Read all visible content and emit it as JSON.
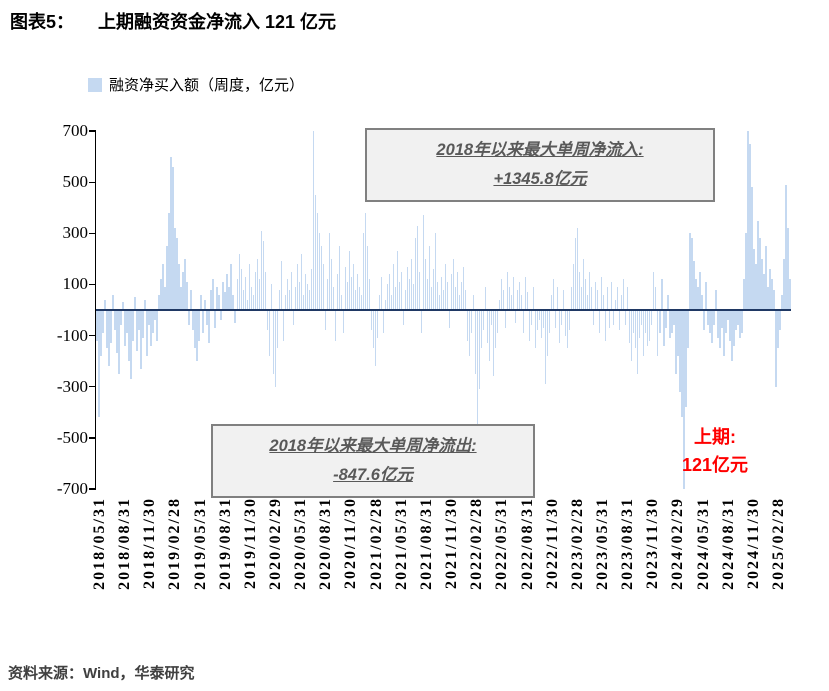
{
  "page": {
    "title_label": "图表5：",
    "title_text": "上期融资资金净流入 121 亿元",
    "source_note": "资料来源：Wind，华泰研究"
  },
  "legend": {
    "label": "融资净买入额（周度，亿元）",
    "swatch_color": "#C5D9F1"
  },
  "annotations": {
    "max_inflow_line1": "2018年以来最大单周净流入:",
    "max_inflow_line2": "+1345.8亿元",
    "max_outflow_line1": "2018年以来最大单周净流出:",
    "max_outflow_line2": "-847.6亿元",
    "last_period_label": "上期:",
    "last_period_value": "121亿元",
    "last_period_color": "#FF0000"
  },
  "chart_data": {
    "type": "bar",
    "title": "融资净买入额（周度，亿元）",
    "xlabel": "",
    "ylabel": "",
    "ylim": [
      -700,
      700
    ],
    "clip": 700,
    "grid": false,
    "bar_color": "#C5D9F1",
    "zero_line_color": "#1F3864",
    "y_ticks": [
      700,
      500,
      300,
      100,
      -100,
      -300,
      -500,
      -700
    ],
    "x_tick_labels": [
      "2018/05/31",
      "2018/08/31",
      "2018/11/30",
      "2019/02/28",
      "2019/05/31",
      "2019/08/31",
      "2019/11/30",
      "2020/02/29",
      "2020/05/31",
      "2020/08/31",
      "2020/11/30",
      "2021/02/28",
      "2021/05/31",
      "2021/08/31",
      "2021/11/30",
      "2022/02/28",
      "2022/05/31",
      "2022/08/31",
      "2022/11/30",
      "2023/02/28",
      "2023/05/31",
      "2023/08/31",
      "2023/11/30",
      "2024/02/29",
      "2024/05/31",
      "2024/08/31",
      "2024/11/30",
      "2025/02/28"
    ],
    "max_inflow": 1345.8,
    "max_outflow": -847.6,
    "last_value": 121,
    "values": [
      -120,
      -420,
      -180,
      -90,
      40,
      -150,
      -220,
      -130,
      60,
      -80,
      -170,
      -250,
      -60,
      30,
      -140,
      -90,
      -200,
      -270,
      -120,
      50,
      -160,
      -80,
      -230,
      -110,
      40,
      -180,
      -60,
      -140,
      -90,
      -40,
      -120,
      60,
      120,
      180,
      90,
      250,
      380,
      600,
      560,
      320,
      280,
      180,
      90,
      150,
      200,
      110,
      -60,
      80,
      -80,
      -150,
      -200,
      -120,
      60,
      -90,
      40,
      -60,
      -130,
      80,
      120,
      -70,
      90,
      60,
      -40,
      110,
      70,
      140,
      90,
      180,
      60,
      -50,
      120,
      220,
      160,
      80,
      130,
      40,
      180,
      90,
      60,
      150,
      200,
      120,
      310,
      270,
      150,
      -80,
      -180,
      100,
      -250,
      -300,
      -150,
      80,
      190,
      -120,
      60,
      120,
      80,
      150,
      -60,
      90,
      180,
      110,
      220,
      60,
      140,
      100,
      80,
      160,
      1345.8,
      450,
      380,
      300,
      250,
      180,
      -80,
      120,
      300,
      200,
      90,
      -120,
      140,
      250,
      60,
      -90,
      170,
      110,
      230,
      130,
      180,
      80,
      140,
      90,
      60,
      300,
      380,
      250,
      120,
      -80,
      -150,
      -220,
      -110,
      60,
      130,
      -90,
      40,
      100,
      140,
      60,
      180,
      90,
      230,
      110,
      150,
      -60,
      80,
      170,
      120,
      200,
      100,
      280,
      330,
      150,
      -90,
      370,
      200,
      120,
      250,
      90,
      160,
      300,
      110,
      60,
      130,
      80,
      180,
      110,
      -70,
      140,
      200,
      90,
      150,
      60,
      110,
      170,
      80,
      -120,
      -180,
      -90,
      60,
      -250,
      -460,
      -310,
      -150,
      -80,
      90,
      -130,
      -200,
      -60,
      -260,
      -150,
      -90,
      40,
      120,
      80,
      -70,
      150,
      90,
      60,
      130,
      -50,
      80,
      110,
      60,
      -90,
      130,
      70,
      -120,
      -60,
      90,
      -150,
      -80,
      -40,
      -110,
      -70,
      -290,
      -180,
      -90,
      60,
      120,
      -70,
      90,
      -130,
      -60,
      80,
      -100,
      -150,
      -80,
      90,
      180,
      280,
      320,
      150,
      90,
      200,
      120,
      60,
      150,
      90,
      -60,
      110,
      80,
      -90,
      130,
      60,
      -120,
      90,
      -70,
      110,
      -60,
      40,
      90,
      -80,
      60,
      120,
      -60,
      90,
      -130,
      -200,
      -90,
      -150,
      -250,
      -110,
      -60,
      -180,
      -90,
      -140,
      -120,
      -60,
      150,
      90,
      -180,
      -90,
      120,
      -140,
      -70,
      60,
      -110,
      -90,
      -60,
      -250,
      -180,
      -320,
      -420,
      -847.6,
      -380,
      -150,
      300,
      280,
      190,
      120,
      90,
      150,
      60,
      -80,
      110,
      -60,
      -90,
      -130,
      -60,
      80,
      -110,
      -150,
      -70,
      -180,
      -90,
      -40,
      -120,
      -200,
      -140,
      -80,
      -60,
      -110,
      -90,
      120,
      300,
      700,
      650,
      480,
      240,
      180,
      350,
      280,
      200,
      140,
      250,
      90,
      160,
      120,
      80,
      -300,
      -150,
      -80,
      60,
      200,
      490,
      320,
      121
    ]
  }
}
